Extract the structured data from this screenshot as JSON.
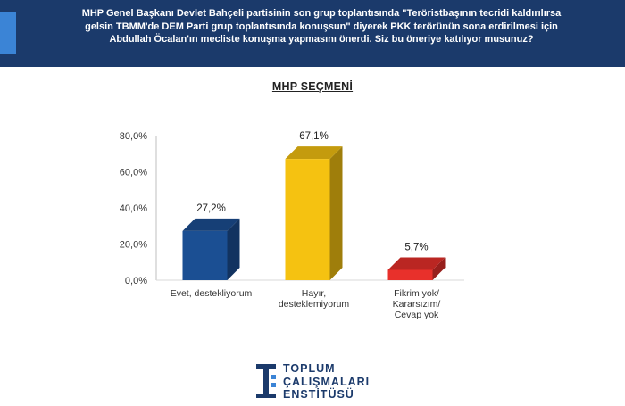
{
  "header": {
    "question": "MHP Genel Başkanı Devlet Bahçeli partisinin son grup toplantısında \"Teröristbaşının tecridi kaldırılırsa\ngelsin TBMM'de DEM Parti grup toplantısında konuşsun\" diyerek PKK terörünün sona erdirilmesi için\nAbdullah Öcalan'ın mecliste konuşma yapmasını önerdi. Siz bu öneriye katılıyor musunuz?"
  },
  "chart_data": {
    "type": "bar",
    "title": "MHP SEÇMENİ",
    "categories": [
      [
        "Evet, destekliyorum"
      ],
      [
        "Hayır,",
        "desteklemiyorum"
      ],
      [
        "Fikrim yok/",
        "Kararsızım/",
        "Cevap yok"
      ]
    ],
    "values": [
      27.2,
      67.1,
      5.7
    ],
    "value_labels": [
      "27,2%",
      "67,1%",
      "5,7%"
    ],
    "colors": [
      "#1b4f93",
      "#f5c211",
      "#e8302b"
    ],
    "ylim": [
      0,
      80
    ],
    "yticks": [
      0,
      20,
      40,
      60,
      80
    ],
    "ytick_labels": [
      "0,0%",
      "20,0%",
      "40,0%",
      "60,0%",
      "80,0%"
    ],
    "grid": false,
    "legend": "none"
  },
  "logo": {
    "lines": [
      "TOPLUM",
      "ÇALIŞMALARI",
      "ENSTİTÜSÜ"
    ],
    "color": "#1b3a6b"
  }
}
